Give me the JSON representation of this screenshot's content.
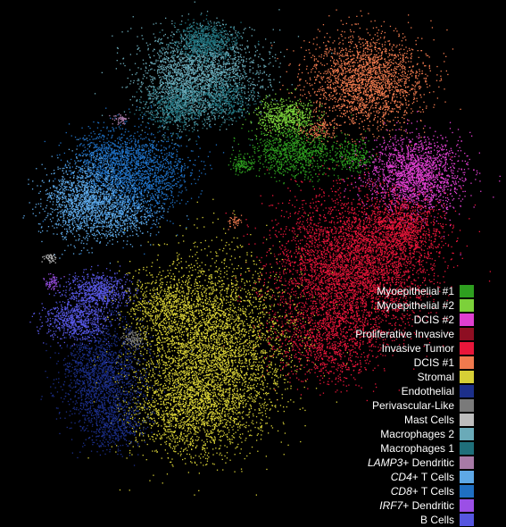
{
  "chart_data": {
    "type": "scatter",
    "title": "",
    "xlabel": "",
    "ylabel": "",
    "grid": false,
    "background": "#000000",
    "legend_placement": "bottom-right",
    "series": [
      {
        "name": "Myoepithelial #1",
        "italic_prefix": "",
        "rest": "Myoepithelial #1",
        "color": "#2e9e1f"
      },
      {
        "name": "Myoepithelial #2",
        "italic_prefix": "",
        "rest": "Myoepithelial #2",
        "color": "#7cd13a"
      },
      {
        "name": "DCIS #2",
        "italic_prefix": "",
        "rest": "DCIS #2",
        "color": "#e03fd0"
      },
      {
        "name": "Proliferative Invasive",
        "italic_prefix": "",
        "rest": "Proliferative Invasive",
        "color": "#8e0e22"
      },
      {
        "name": "Invasive Tumor",
        "italic_prefix": "",
        "rest": "Invasive Tumor",
        "color": "#e8163a"
      },
      {
        "name": "DCIS #1",
        "italic_prefix": "",
        "rest": "DCIS #1",
        "color": "#f07a4e"
      },
      {
        "name": "Stromal",
        "italic_prefix": "",
        "rest": "Stromal",
        "color": "#d6cf36"
      },
      {
        "name": "Endothelial",
        "italic_prefix": "",
        "rest": "Endothelial",
        "color": "#1c2f8a"
      },
      {
        "name": "Perivascular-Like",
        "italic_prefix": "",
        "rest": "Perivascular-Like",
        "color": "#7a7a7a"
      },
      {
        "name": "Mast Cells",
        "italic_prefix": "",
        "rest": "Mast Cells",
        "color": "#bdbdbd"
      },
      {
        "name": "Macrophages 2",
        "italic_prefix": "",
        "rest": "Macrophages 2",
        "color": "#6aaab8"
      },
      {
        "name": "Macrophages 1",
        "italic_prefix": "",
        "rest": "Macrophages 1",
        "color": "#1f6f7a"
      },
      {
        "name": "LAMP3+ Dendritic",
        "italic_prefix": "LAMP3",
        "rest": "+ Dendritic",
        "color": "#a77aa6"
      },
      {
        "name": "CD4+ T Cells",
        "italic_prefix": "CD4",
        "rest": "+ T Cells",
        "color": "#5ea8e6"
      },
      {
        "name": "CD8+ T Cells",
        "italic_prefix": "CD8",
        "rest": "+ T Cells",
        "color": "#1f6fc2"
      },
      {
        "name": "IRF7+ Dendritic",
        "italic_prefix": "IRF7",
        "rest": "+ Dendritic",
        "color": "#9b4fe6"
      },
      {
        "name": "B Cells",
        "italic_prefix": "",
        "rest": "B Cells",
        "color": "#5656e0"
      }
    ]
  }
}
